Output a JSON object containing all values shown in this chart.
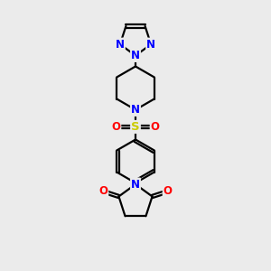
{
  "bg_color": "#ebebeb",
  "bond_color": "#000000",
  "bond_width": 1.6,
  "N_color": "#0000ff",
  "O_color": "#ff0000",
  "S_color": "#cccc00",
  "font_size_atom": 8.5,
  "fig_w": 3.0,
  "fig_h": 3.0,
  "dpi": 100,
  "xlim": [
    0,
    10
  ],
  "ylim": [
    0,
    10
  ]
}
